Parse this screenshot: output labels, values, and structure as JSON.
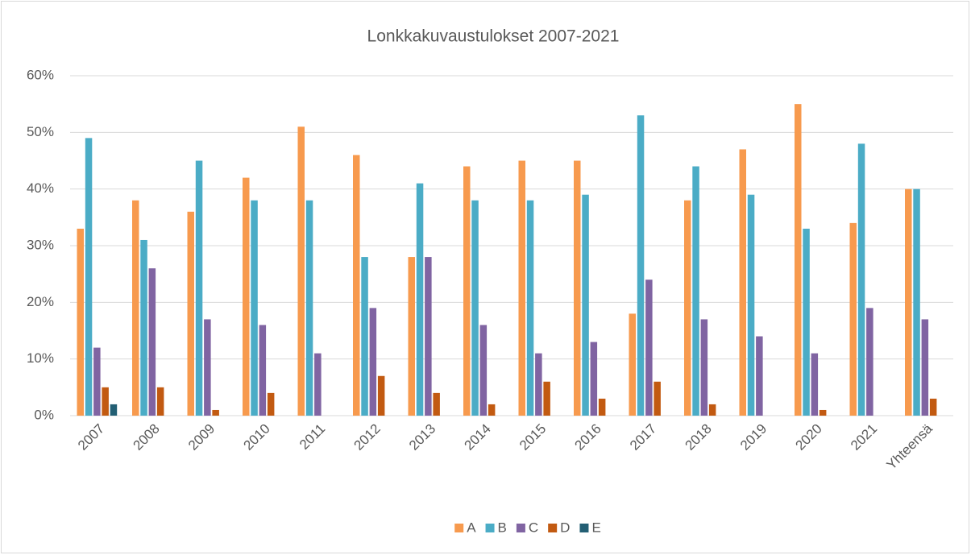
{
  "chart_data": {
    "type": "bar",
    "title": "Lonkkakuvaustulokset 2007-2021",
    "categories": [
      "2007",
      "2008",
      "2009",
      "2010",
      "2011",
      "2012",
      "2013",
      "2014",
      "2015",
      "2016",
      "2017",
      "2018",
      "2019",
      "2020",
      "2021",
      "Yhteensä"
    ],
    "series": [
      {
        "name": "A",
        "color": "#f79a4e",
        "values": [
          33,
          38,
          36,
          42,
          51,
          46,
          28,
          44,
          45,
          45,
          18,
          38,
          47,
          55,
          34,
          40
        ]
      },
      {
        "name": "B",
        "color": "#4bacc6",
        "values": [
          49,
          31,
          45,
          38,
          38,
          28,
          41,
          38,
          38,
          39,
          53,
          44,
          39,
          33,
          48,
          40
        ]
      },
      {
        "name": "C",
        "color": "#8064a2",
        "values": [
          12,
          26,
          17,
          16,
          11,
          19,
          28,
          16,
          11,
          13,
          24,
          17,
          14,
          11,
          19,
          17
        ]
      },
      {
        "name": "D",
        "color": "#c25a11",
        "values": [
          5,
          5,
          1,
          4,
          0,
          7,
          4,
          2,
          6,
          3,
          6,
          2,
          0,
          1,
          0,
          3
        ]
      },
      {
        "name": "E",
        "color": "#235f74",
        "values": [
          2,
          0,
          0,
          0,
          0,
          0,
          0,
          0,
          0,
          0,
          0,
          0,
          0,
          0,
          0,
          0
        ]
      }
    ],
    "ylim": [
      0,
      60
    ],
    "yticks": [
      {
        "value": 0,
        "label": "0%"
      },
      {
        "value": 10,
        "label": "10%"
      },
      {
        "value": 20,
        "label": "20%"
      },
      {
        "value": 30,
        "label": "30%"
      },
      {
        "value": 40,
        "label": "40%"
      },
      {
        "value": 50,
        "label": "50%"
      },
      {
        "value": 60,
        "label": "60%"
      }
    ],
    "grid": true,
    "legend": "bottom"
  }
}
